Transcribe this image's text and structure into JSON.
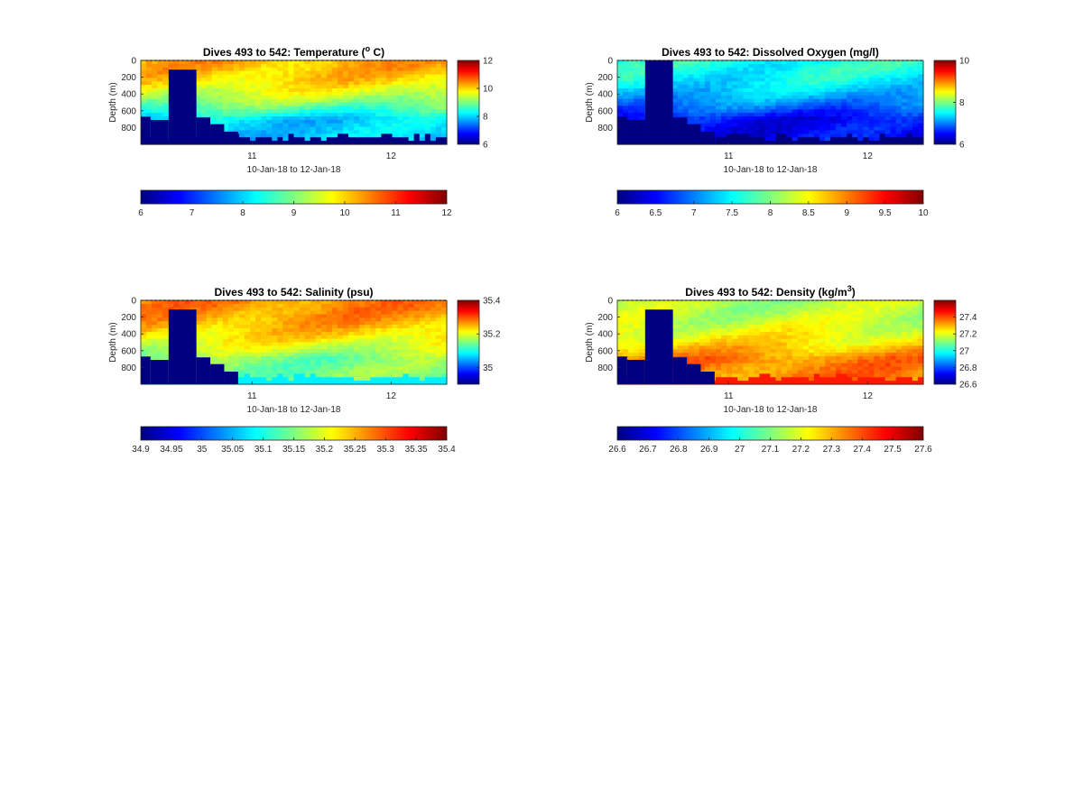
{
  "figure": {
    "colormap": "jet",
    "colormap_stops": [
      "#00007f",
      "#0000ff",
      "#007fff",
      "#00ffff",
      "#7fff7f",
      "#ffff00",
      "#ff7f00",
      "#ff0000",
      "#7f0000"
    ],
    "mask_color": "#000080"
  },
  "chart_data": [
    {
      "type": "heatmap",
      "variable": "temperature",
      "title": {
        "main": "Dives 493 to 542: Temperature (",
        "sup": "o",
        "tail": " C)"
      },
      "xlabel": "10-Jan-18 to 12-Jan-18",
      "ylabel": "Depth (m)",
      "xlim": [
        10.2,
        12.4
      ],
      "x_ticks": [
        11,
        12
      ],
      "ylim": [
        0,
        1000
      ],
      "y_ticks": [
        0,
        200,
        400,
        600,
        800
      ],
      "y_reversed": true,
      "clim": [
        6,
        12
      ],
      "colorbar_right_ticks": [
        6,
        8,
        10,
        12
      ],
      "colorbar_bottom_ticks": [
        6,
        7,
        8,
        9,
        10,
        11,
        12
      ],
      "surface_value": 10.2,
      "deep_value": 8.0,
      "below_bottom_value": 6.0,
      "mask_segments": [
        {
          "x": [
            10.2,
            10.27
          ],
          "bottom": 670
        },
        {
          "x": [
            10.27,
            10.4
          ],
          "bottom": 710
        },
        {
          "x": [
            10.4,
            10.6
          ],
          "bottom": 110
        },
        {
          "x": [
            10.6,
            10.7
          ],
          "bottom": 680
        },
        {
          "x": [
            10.7,
            10.8
          ],
          "bottom": 760
        },
        {
          "x": [
            10.8,
            10.9
          ],
          "bottom": 850
        }
      ]
    },
    {
      "type": "heatmap",
      "variable": "dissolved_oxygen",
      "title": {
        "main": "Dives 493 to 542: Dissolved Oxygen (mg/l)",
        "sup": "",
        "tail": ""
      },
      "xlabel": "10-Jan-18 to 12-Jan-18",
      "ylabel": "Depth (m)",
      "xlim": [
        10.2,
        12.4
      ],
      "x_ticks": [
        11,
        12
      ],
      "ylim": [
        0,
        1000
      ],
      "y_ticks": [
        0,
        200,
        400,
        600,
        800
      ],
      "y_reversed": true,
      "clim": [
        6,
        10
      ],
      "colorbar_right_ticks": [
        6,
        8,
        10
      ],
      "colorbar_bottom_ticks": [
        6,
        6.5,
        7,
        7.5,
        8,
        8.5,
        9,
        9.5,
        10
      ],
      "surface_value": 7.6,
      "deep_value": 6.5,
      "below_bottom_value": 6.0,
      "mask_segments": [
        {
          "x": [
            10.2,
            10.27
          ],
          "bottom": 670
        },
        {
          "x": [
            10.27,
            10.4
          ],
          "bottom": 710
        },
        {
          "x": [
            10.4,
            10.6
          ],
          "bottom": 0
        },
        {
          "x": [
            10.6,
            10.7
          ],
          "bottom": 680
        },
        {
          "x": [
            10.7,
            10.8
          ],
          "bottom": 760
        },
        {
          "x": [
            10.8,
            10.9
          ],
          "bottom": 850
        }
      ]
    },
    {
      "type": "heatmap",
      "variable": "salinity",
      "title": {
        "main": "Dives 493 to 542: Salinity (psu)",
        "sup": "",
        "tail": ""
      },
      "xlabel": "10-Jan-18 to 12-Jan-18",
      "ylabel": "Depth (m)",
      "xlim": [
        10.2,
        12.4
      ],
      "x_ticks": [
        11,
        12
      ],
      "ylim": [
        0,
        1000
      ],
      "y_ticks": [
        0,
        200,
        400,
        600,
        800
      ],
      "y_reversed": true,
      "clim": [
        34.9,
        35.4
      ],
      "colorbar_right_ticks": [
        35,
        35.2,
        35.4
      ],
      "colorbar_bottom_ticks": [
        34.9,
        34.95,
        35,
        35.05,
        35.1,
        35.15,
        35.2,
        35.25,
        35.3,
        35.35,
        35.4
      ],
      "surface_value": 35.27,
      "deep_value": 35.15,
      "below_bottom_value": 35.08,
      "mask_segments": [
        {
          "x": [
            10.2,
            10.27
          ],
          "bottom": 670
        },
        {
          "x": [
            10.27,
            10.4
          ],
          "bottom": 710
        },
        {
          "x": [
            10.4,
            10.6
          ],
          "bottom": 110
        },
        {
          "x": [
            10.6,
            10.7
          ],
          "bottom": 680
        },
        {
          "x": [
            10.7,
            10.8
          ],
          "bottom": 760
        },
        {
          "x": [
            10.8,
            10.9
          ],
          "bottom": 850
        }
      ]
    },
    {
      "type": "heatmap",
      "variable": "density",
      "title": {
        "main": "Dives 493 to 542: Density (kg/m",
        "sup": "3",
        "tail": ")"
      },
      "xlabel": "10-Jan-18 to 12-Jan-18",
      "ylabel": "Depth (m)",
      "xlim": [
        10.2,
        12.4
      ],
      "x_ticks": [
        11,
        12
      ],
      "ylim": [
        0,
        1000
      ],
      "y_ticks": [
        0,
        200,
        400,
        600,
        800
      ],
      "y_reversed": true,
      "clim": [
        26.6,
        27.6
      ],
      "colorbar_right_ticks": [
        26.6,
        26.8,
        27,
        27.2,
        27.4
      ],
      "colorbar_bottom_ticks": [
        26.6,
        26.7,
        26.8,
        26.9,
        27,
        27.1,
        27.2,
        27.3,
        27.4,
        27.5,
        27.6
      ],
      "surface_value": 27.15,
      "deep_value": 27.35,
      "below_bottom_value": 27.45,
      "mask_segments": [
        {
          "x": [
            10.2,
            10.27
          ],
          "bottom": 670
        },
        {
          "x": [
            10.27,
            10.4
          ],
          "bottom": 710
        },
        {
          "x": [
            10.4,
            10.6
          ],
          "bottom": 110
        },
        {
          "x": [
            10.6,
            10.7
          ],
          "bottom": 680
        },
        {
          "x": [
            10.7,
            10.8
          ],
          "bottom": 760
        },
        {
          "x": [
            10.8,
            10.9
          ],
          "bottom": 850
        }
      ]
    }
  ]
}
